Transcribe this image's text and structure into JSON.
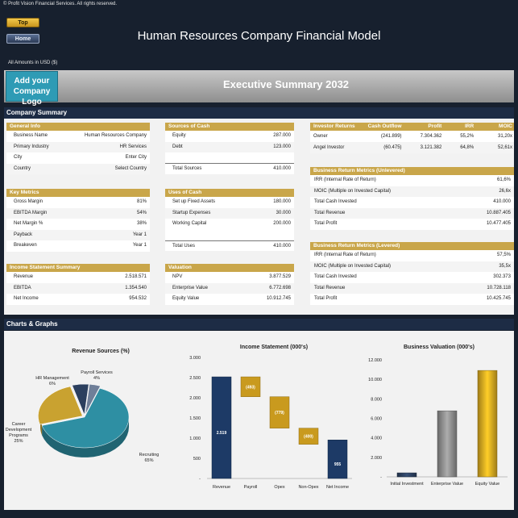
{
  "header": {
    "copyright": "© Profit Vision Financial Services. All rights reserved.",
    "nav_top": "Top",
    "nav_home": "Home",
    "title": "Human Resources Company Financial Model",
    "amounts": "All Amounts in  USD ($)",
    "logo": "Add your Company Logo",
    "executive_title": "Executive Summary 2032"
  },
  "company_summary": {
    "label": "Company Summary",
    "general_info": {
      "title": "General Info",
      "rows": [
        {
          "label": "Business Name",
          "value": "Human Resources Company"
        },
        {
          "label": "Primary Industry",
          "value": "HR Services"
        },
        {
          "label": "City",
          "value": "Enter City"
        },
        {
          "label": "Country",
          "value": "Select Country"
        }
      ]
    },
    "sources_of_cash": {
      "title": "Sources of Cash",
      "rows": [
        {
          "label": "Equity",
          "value": "287.000"
        },
        {
          "label": "Debt",
          "value": "123.000"
        }
      ],
      "total": {
        "label": "Total Sources",
        "value": "410.000"
      }
    },
    "investor_returns": {
      "headers": [
        "Investor Returns",
        "Cash Outflow",
        "Profit",
        "IRR",
        "MOIC"
      ],
      "rows": [
        [
          "Owner",
          "(241.899)",
          "7.304.362",
          "55,2%",
          "31,20x"
        ],
        [
          "Angel Investor",
          "(60.475)",
          "3.121.382",
          "64,8%",
          "52,61x"
        ]
      ]
    },
    "key_metrics": {
      "title": "Key Metrics",
      "rows": [
        {
          "label": "Gross Margin",
          "value": "81%"
        },
        {
          "label": "EBITDA Margin",
          "value": "54%"
        },
        {
          "label": "Net Margin %",
          "value": "38%"
        },
        {
          "label": "Payback",
          "value": "Year 1"
        },
        {
          "label": "Breakeven",
          "value": "Year 1"
        }
      ]
    },
    "uses_of_cash": {
      "title": "Uses of Cash",
      "rows": [
        {
          "label": "Set up Fixed Assets",
          "value": "180.000"
        },
        {
          "label": "Startup Expenses",
          "value": "30.000"
        },
        {
          "label": "Working Capital",
          "value": "200.000"
        }
      ],
      "total": {
        "label": "Total Uses",
        "value": "410.000"
      }
    },
    "unlevered": {
      "title": "Business Return Metrics (Unlevered)",
      "rows": [
        {
          "label": "IRR (Internal Rate of Return)",
          "value": "61,6%"
        },
        {
          "label": "MOIC (Multiple on Invested Capital)",
          "value": "26,6x"
        },
        {
          "label": "Total Cash Invested",
          "value": "410.000"
        },
        {
          "label": "Total Revenue",
          "value": "10.887.405"
        },
        {
          "label": "Total Profit",
          "value": "10.477.405"
        }
      ]
    },
    "income_statement_summary": {
      "title": "Income Statement Summary",
      "rows": [
        {
          "label": "Revenue",
          "value": "2.518.571"
        },
        {
          "label": "EBITDA",
          "value": "1.354.540"
        },
        {
          "label": "Net Income",
          "value": "954.532"
        }
      ]
    },
    "valuation": {
      "title": "Valuation",
      "rows": [
        {
          "label": "NPV",
          "value": "3.877.529"
        },
        {
          "label": "Enterprise Value",
          "value": "6.772.698"
        },
        {
          "label": "Equity Value",
          "value": "10.912.745"
        }
      ]
    },
    "levered": {
      "title": "Business Return Metrics (Levered)",
      "rows": [
        {
          "label": "IRR (Internal Rate of Return)",
          "value": "57,5%"
        },
        {
          "label": "MOIC (Multiple on Invested Capital)",
          "value": "35,5x"
        },
        {
          "label": "Total Cash Invested",
          "value": "302.373"
        },
        {
          "label": "Total Revenue",
          "value": "10.728.118"
        },
        {
          "label": "Total Profit",
          "value": "10.425.745"
        }
      ]
    }
  },
  "charts_label": "Charts & Graphs",
  "chart_data": [
    {
      "type": "pie",
      "title": "Revenue Sources (%)",
      "slices": [
        {
          "label": "Recruiting",
          "value": 65,
          "color": "#2e8fa3"
        },
        {
          "label": "Career Development Programs",
          "value": 25,
          "color": "#c9a230"
        },
        {
          "label": "HR Management",
          "value": 6,
          "color": "#2b3f5e"
        },
        {
          "label": "Payroll Services",
          "value": 4,
          "color": "#6f7f99"
        }
      ]
    },
    {
      "type": "bar",
      "title": "Income Statement (000's)",
      "categories": [
        "Revenue",
        "Payroll",
        "Opex",
        "Non-Opex",
        "Net Income"
      ],
      "values": [
        2519,
        -493,
        -779,
        -400,
        955
      ],
      "data_labels": [
        "2.519",
        "(493)",
        "(779)",
        "(400)",
        "955"
      ],
      "ylim": [
        0,
        3000
      ],
      "yticks": [
        "-",
        "500",
        "1.000",
        "1.500",
        "2.000",
        "2.500",
        "3.000"
      ],
      "colors": {
        "total": "#1d3a66",
        "negative": "#c99a1e"
      }
    },
    {
      "type": "bar",
      "title": "Business Valuation (000's)",
      "categories": [
        "Initial Investment",
        "Enterprise Value",
        "Equity Value"
      ],
      "values": [
        410,
        6773,
        10913
      ],
      "ylim": [
        0,
        12000
      ],
      "yticks": [
        "-",
        "2.000",
        "4.000",
        "6.000",
        "8.000",
        "10.000",
        "12.000"
      ],
      "colors": [
        "#2b3f5e",
        "#8a8a8a",
        "#d4a520"
      ]
    }
  ]
}
